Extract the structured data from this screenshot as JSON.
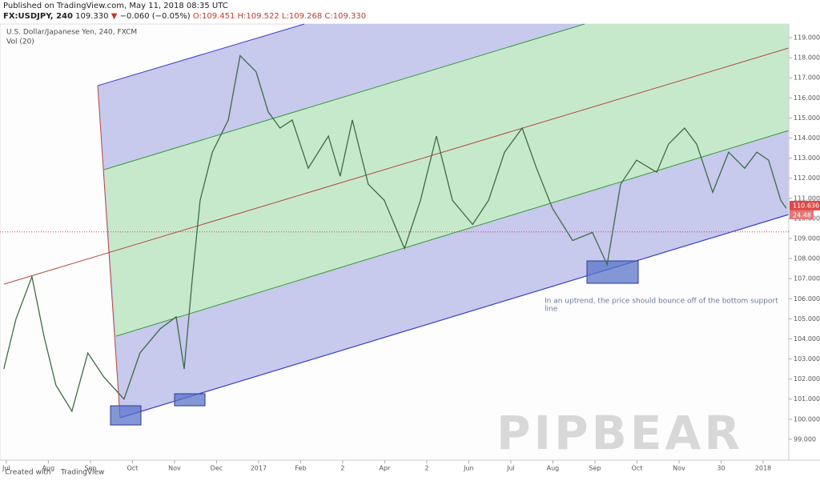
{
  "header": {
    "published": "Published on TradingView.com, May 11, 2018 08:35 UTC",
    "symbol": "FX:USDJPY, 240",
    "last": "109.330",
    "arrow": "▼",
    "change": "−0.060 (−0.05%)",
    "ohlc": "O:109.451 H:109.522 L:109.268 C:109.330"
  },
  "watermark": "PIPBEAR",
  "footer": {
    "created": "Created with",
    "brand": "TradingView"
  },
  "chart_data": {
    "type": "line",
    "title": "U.S. Dollar/Japanese Yen, 240, FXCM",
    "subtitle": "Vol (20)",
    "annotation": [
      "In an uptrend, the price should bounce off of the bottom support",
      "line"
    ],
    "price_label": 110.636,
    "volume_label": 24.48,
    "last_price": 109.33,
    "xlim": [
      -0.15,
      18.61
    ],
    "ylim": [
      97.96,
      119.68
    ],
    "xticks": [
      {
        "value": 0,
        "label": "Jul"
      },
      {
        "value": 1,
        "label": "Aug"
      },
      {
        "value": 2,
        "label": "Sep"
      },
      {
        "value": 3,
        "label": "Oct"
      },
      {
        "value": 4,
        "label": "Nov"
      },
      {
        "value": 5,
        "label": "Dec"
      },
      {
        "value": 6,
        "label": "2017"
      },
      {
        "value": 7,
        "label": "Feb"
      },
      {
        "value": 8,
        "label": "2"
      },
      {
        "value": 9,
        "label": "Apr"
      },
      {
        "value": 10,
        "label": "2"
      },
      {
        "value": 11,
        "label": "Jun"
      },
      {
        "value": 12,
        "label": "Jul"
      },
      {
        "value": 13,
        "label": "Aug"
      },
      {
        "value": 14,
        "label": "Sep"
      },
      {
        "value": 15,
        "label": "Oct"
      },
      {
        "value": 16,
        "label": "Nov"
      },
      {
        "value": 17,
        "label": "30"
      },
      {
        "value": 18,
        "label": "2018"
      }
    ],
    "yticks": [
      {
        "value": 99,
        "label": "99.000"
      },
      {
        "value": 100,
        "label": "100.000"
      },
      {
        "value": 101,
        "label": "101.000"
      },
      {
        "value": 102,
        "label": "102.000"
      },
      {
        "value": 103,
        "label": "103.000"
      },
      {
        "value": 104,
        "label": "104.000"
      },
      {
        "value": 105,
        "label": "105.000"
      },
      {
        "value": 106,
        "label": "106.000"
      },
      {
        "value": 107,
        "label": "107.000"
      },
      {
        "value": 108,
        "label": "108.000"
      },
      {
        "value": 109,
        "label": "109.000"
      },
      {
        "value": 110,
        "label": "110.000"
      },
      {
        "value": 111,
        "label": "111.000"
      },
      {
        "value": 112,
        "label": "112.000"
      },
      {
        "value": 113,
        "label": "113.000"
      },
      {
        "value": 114,
        "label": "114.000"
      },
      {
        "value": 115,
        "label": "115.000"
      },
      {
        "value": 116,
        "label": "116.000"
      },
      {
        "value": 117,
        "label": "117.000"
      },
      {
        "value": 118,
        "label": "118.000"
      },
      {
        "value": 119,
        "label": "119.000"
      }
    ],
    "x": [
      -0.06,
      0.23,
      0.61,
      0.9,
      1.18,
      1.56,
      1.94,
      2.32,
      2.8,
      3.18,
      3.66,
      4.04,
      4.23,
      4.42,
      4.61,
      4.9,
      5.28,
      5.56,
      5.94,
      6.23,
      6.51,
      6.8,
      7.18,
      7.66,
      7.94,
      8.23,
      8.61,
      8.99,
      9.47,
      9.85,
      10.23,
      10.61,
      11.09,
      11.47,
      11.85,
      12.27,
      12.61,
      12.99,
      13.47,
      13.94,
      14.29,
      14.61,
      14.99,
      15.47,
      15.75,
      16.13,
      16.42,
      16.8,
      17.18,
      17.56,
      17.85,
      18.13,
      18.42,
      18.55
    ],
    "series": [
      {
        "name": "USDJPY",
        "color": "#3d6b47",
        "values": [
          102.5,
          105,
          107.1,
          104.1,
          101.7,
          100.4,
          103.3,
          102.1,
          101,
          103.3,
          104.5,
          105.1,
          102.5,
          106.9,
          110.9,
          113.3,
          114.9,
          118.1,
          117.3,
          115.3,
          114.5,
          114.9,
          112.5,
          114.1,
          112.1,
          114.9,
          111.7,
          110.9,
          108.5,
          110.9,
          114.1,
          110.9,
          109.7,
          110.9,
          113.3,
          114.5,
          112.5,
          110.5,
          108.9,
          109.3,
          107.7,
          111.7,
          112.9,
          112.3,
          113.7,
          114.5,
          113.7,
          111.3,
          113.3,
          112.5,
          113.3,
          112.9,
          110.9,
          110.5
        ]
      }
    ]
  }
}
